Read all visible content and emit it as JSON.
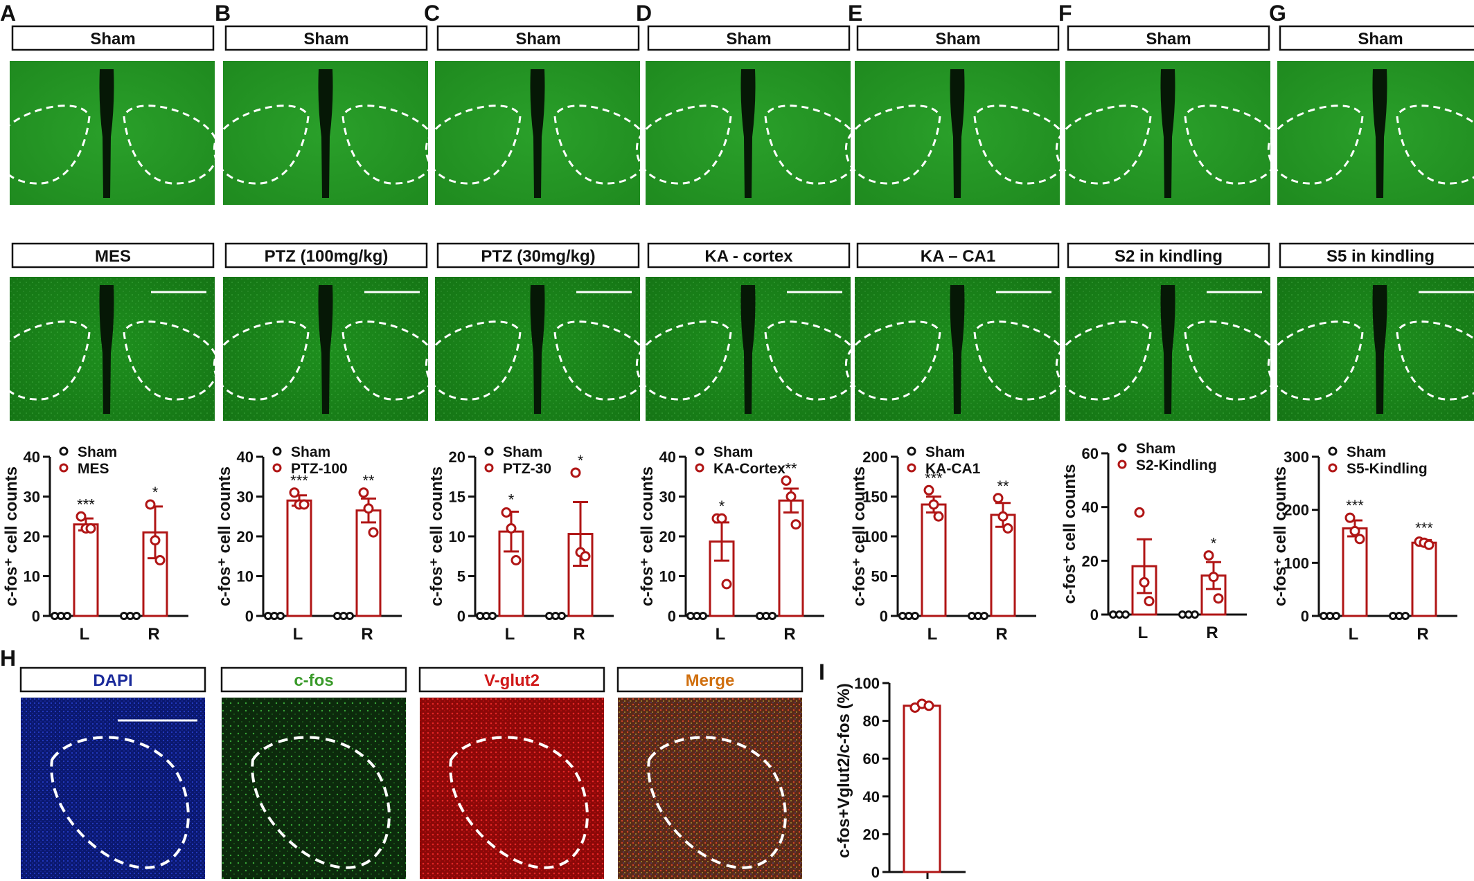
{
  "panel_letters": [
    "A",
    "B",
    "C",
    "D",
    "E",
    "F",
    "G",
    "H",
    "I"
  ],
  "columns": [
    {
      "letter": "A",
      "sham_title": "Sham",
      "treat_title": "MES",
      "legend": [
        "Sham",
        "MES"
      ]
    },
    {
      "letter": "B",
      "sham_title": "Sham",
      "treat_title": "PTZ (100mg/kg)",
      "legend": [
        "Sham",
        "PTZ-100"
      ]
    },
    {
      "letter": "C",
      "sham_title": "Sham",
      "treat_title": "PTZ (30mg/kg)",
      "legend": [
        "Sham",
        "PTZ-30"
      ]
    },
    {
      "letter": "D",
      "sham_title": "Sham",
      "treat_title": "KA - cortex",
      "legend": [
        "Sham",
        "KA-Cortex"
      ]
    },
    {
      "letter": "E",
      "sham_title": "Sham",
      "treat_title": "KA – CA1",
      "legend": [
        "Sham",
        "KA-CA1"
      ]
    },
    {
      "letter": "F",
      "sham_title": "Sham",
      "treat_title": "S2 in kindling",
      "legend": [
        "Sham",
        "S2-Kindling"
      ]
    },
    {
      "letter": "G",
      "sham_title": "Sham",
      "treat_title": "S5 in kindling",
      "legend": [
        "Sham",
        "S5-Kindling"
      ]
    }
  ],
  "h_titles": [
    "DAPI",
    "c-fos",
    "V-glut2",
    "Merge"
  ],
  "colors": {
    "sham": "#111111",
    "treat": "#b01515",
    "dapi": "#1a2a9a",
    "cfos": "#3a9a2a",
    "vglut": "#d01818",
    "merge": "#d07010"
  },
  "chart_data": [
    {
      "type": "bar",
      "panel": "A",
      "ylabel": "c-fos⁺ cell counts",
      "categories": [
        "L",
        "R"
      ],
      "ylim": [
        0,
        40
      ],
      "yticks": [
        0,
        10,
        20,
        30,
        40
      ],
      "series": [
        {
          "name": "Sham",
          "values": [
            0,
            0
          ],
          "points": [
            [
              0,
              0,
              0
            ],
            [
              0,
              0,
              0
            ]
          ]
        },
        {
          "name": "MES",
          "values": [
            23,
            21
          ],
          "sem": [
            1.5,
            6.5
          ],
          "points": [
            [
              25,
              22,
              22
            ],
            [
              28,
              19,
              14
            ]
          ]
        }
      ],
      "annotations": [
        {
          "cat": "L",
          "text": "***"
        },
        {
          "cat": "R",
          "text": "*"
        }
      ]
    },
    {
      "type": "bar",
      "panel": "B",
      "ylabel": "c-fos⁺ cell counts",
      "categories": [
        "L",
        "R"
      ],
      "ylim": [
        0,
        40
      ],
      "yticks": [
        0,
        10,
        20,
        30,
        40
      ],
      "series": [
        {
          "name": "Sham",
          "values": [
            0,
            0
          ],
          "points": [
            [
              0,
              0,
              0
            ],
            [
              0,
              0,
              0
            ]
          ]
        },
        {
          "name": "PTZ-100",
          "values": [
            29,
            26.5
          ],
          "sem": [
            1.3,
            3
          ],
          "points": [
            [
              31,
              28,
              28
            ],
            [
              31,
              27,
              21
            ]
          ]
        }
      ],
      "annotations": [
        {
          "cat": "L",
          "text": "***"
        },
        {
          "cat": "R",
          "text": "**"
        }
      ]
    },
    {
      "type": "bar",
      "panel": "C",
      "ylabel": "c-fos⁺ cell counts",
      "categories": [
        "L",
        "R"
      ],
      "ylim": [
        0,
        20
      ],
      "yticks": [
        0,
        5,
        10,
        15,
        20
      ],
      "series": [
        {
          "name": "Sham",
          "values": [
            0,
            0
          ],
          "points": [
            [
              0,
              0,
              0
            ],
            [
              0,
              0,
              0
            ]
          ]
        },
        {
          "name": "PTZ-30",
          "values": [
            10.6,
            10.3
          ],
          "sem": [
            2.5,
            4
          ],
          "points": [
            [
              13,
              11,
              7
            ],
            [
              18,
              8,
              7.5
            ]
          ]
        }
      ],
      "annotations": [
        {
          "cat": "L",
          "text": "*"
        },
        {
          "cat": "R",
          "text": "*"
        }
      ]
    },
    {
      "type": "bar",
      "panel": "D",
      "ylabel": "c-fos⁺ cell counts",
      "categories": [
        "L",
        "R"
      ],
      "ylim": [
        0,
        40
      ],
      "yticks": [
        0,
        10,
        20,
        30,
        40
      ],
      "series": [
        {
          "name": "Sham",
          "values": [
            0,
            0
          ],
          "points": [
            [
              0,
              0,
              0
            ],
            [
              0,
              0,
              0
            ]
          ]
        },
        {
          "name": "KA-Cortex",
          "values": [
            18.7,
            29
          ],
          "sem": [
            4.8,
            3
          ],
          "points": [
            [
              24.5,
              24.5,
              8
            ],
            [
              34,
              30,
              23
            ]
          ]
        }
      ],
      "annotations": [
        {
          "cat": "L",
          "text": "*"
        },
        {
          "cat": "R",
          "text": "**"
        }
      ]
    },
    {
      "type": "bar",
      "panel": "E",
      "ylabel": "c-fos⁺ cell counts",
      "categories": [
        "L",
        "R"
      ],
      "ylim": [
        0,
        200
      ],
      "yticks": [
        0,
        50,
        100,
        150,
        200
      ],
      "series": [
        {
          "name": "Sham",
          "values": [
            0,
            0
          ],
          "points": [
            [
              0,
              0,
              0
            ],
            [
              0,
              0,
              0
            ]
          ]
        },
        {
          "name": "KA-CA1",
          "values": [
            140,
            127
          ],
          "sem": [
            10,
            15
          ],
          "points": [
            [
              158,
              140,
              125
            ],
            [
              148,
              125,
              110
            ]
          ]
        }
      ],
      "annotations": [
        {
          "cat": "L",
          "text": "***"
        },
        {
          "cat": "R",
          "text": "**"
        }
      ]
    },
    {
      "type": "bar",
      "panel": "F",
      "ylabel": "c-fos⁺ cell counts",
      "categories": [
        "L",
        "R"
      ],
      "ylim": [
        0,
        60
      ],
      "yticks": [
        0,
        20,
        40,
        60
      ],
      "series": [
        {
          "name": "Sham",
          "values": [
            0,
            0
          ],
          "points": [
            [
              0,
              0,
              0
            ],
            [
              0,
              0,
              0
            ]
          ]
        },
        {
          "name": "S2-Kindling",
          "values": [
            18,
            14.5
          ],
          "sem": [
            10,
            5
          ],
          "points": [
            [
              38,
              12,
              5
            ],
            [
              22,
              14,
              6
            ]
          ]
        }
      ],
      "annotations": [
        {
          "cat": "R",
          "text": "*"
        }
      ]
    },
    {
      "type": "bar",
      "panel": "G",
      "ylabel": "c-fos⁺ cell counts",
      "categories": [
        "L",
        "R"
      ],
      "ylim": [
        0,
        300
      ],
      "yticks": [
        0,
        100,
        200,
        300
      ],
      "series": [
        {
          "name": "Sham",
          "values": [
            0,
            0
          ],
          "points": [
            [
              0,
              0,
              0
            ],
            [
              0,
              0,
              0
            ]
          ]
        },
        {
          "name": "S5-Kindling",
          "values": [
            165,
            138
          ],
          "sem": [
            15,
            5
          ],
          "points": [
            [
              185,
              160,
              145
            ],
            [
              140,
              138,
              134
            ]
          ]
        }
      ],
      "annotations": [
        {
          "cat": "L",
          "text": "***"
        },
        {
          "cat": "R",
          "text": "***"
        }
      ]
    },
    {
      "type": "bar",
      "panel": "I",
      "ylabel": "c-fos+Vglut2/c-fos (%)",
      "categories": [
        ""
      ],
      "ylim": [
        0,
        100
      ],
      "yticks": [
        0,
        20,
        40,
        60,
        80,
        100
      ],
      "series": [
        {
          "name": "",
          "values": [
            88
          ],
          "sem": [
            0.7
          ],
          "points": [
            [
              87,
              89,
              88
            ]
          ]
        }
      ],
      "annotations": []
    }
  ]
}
